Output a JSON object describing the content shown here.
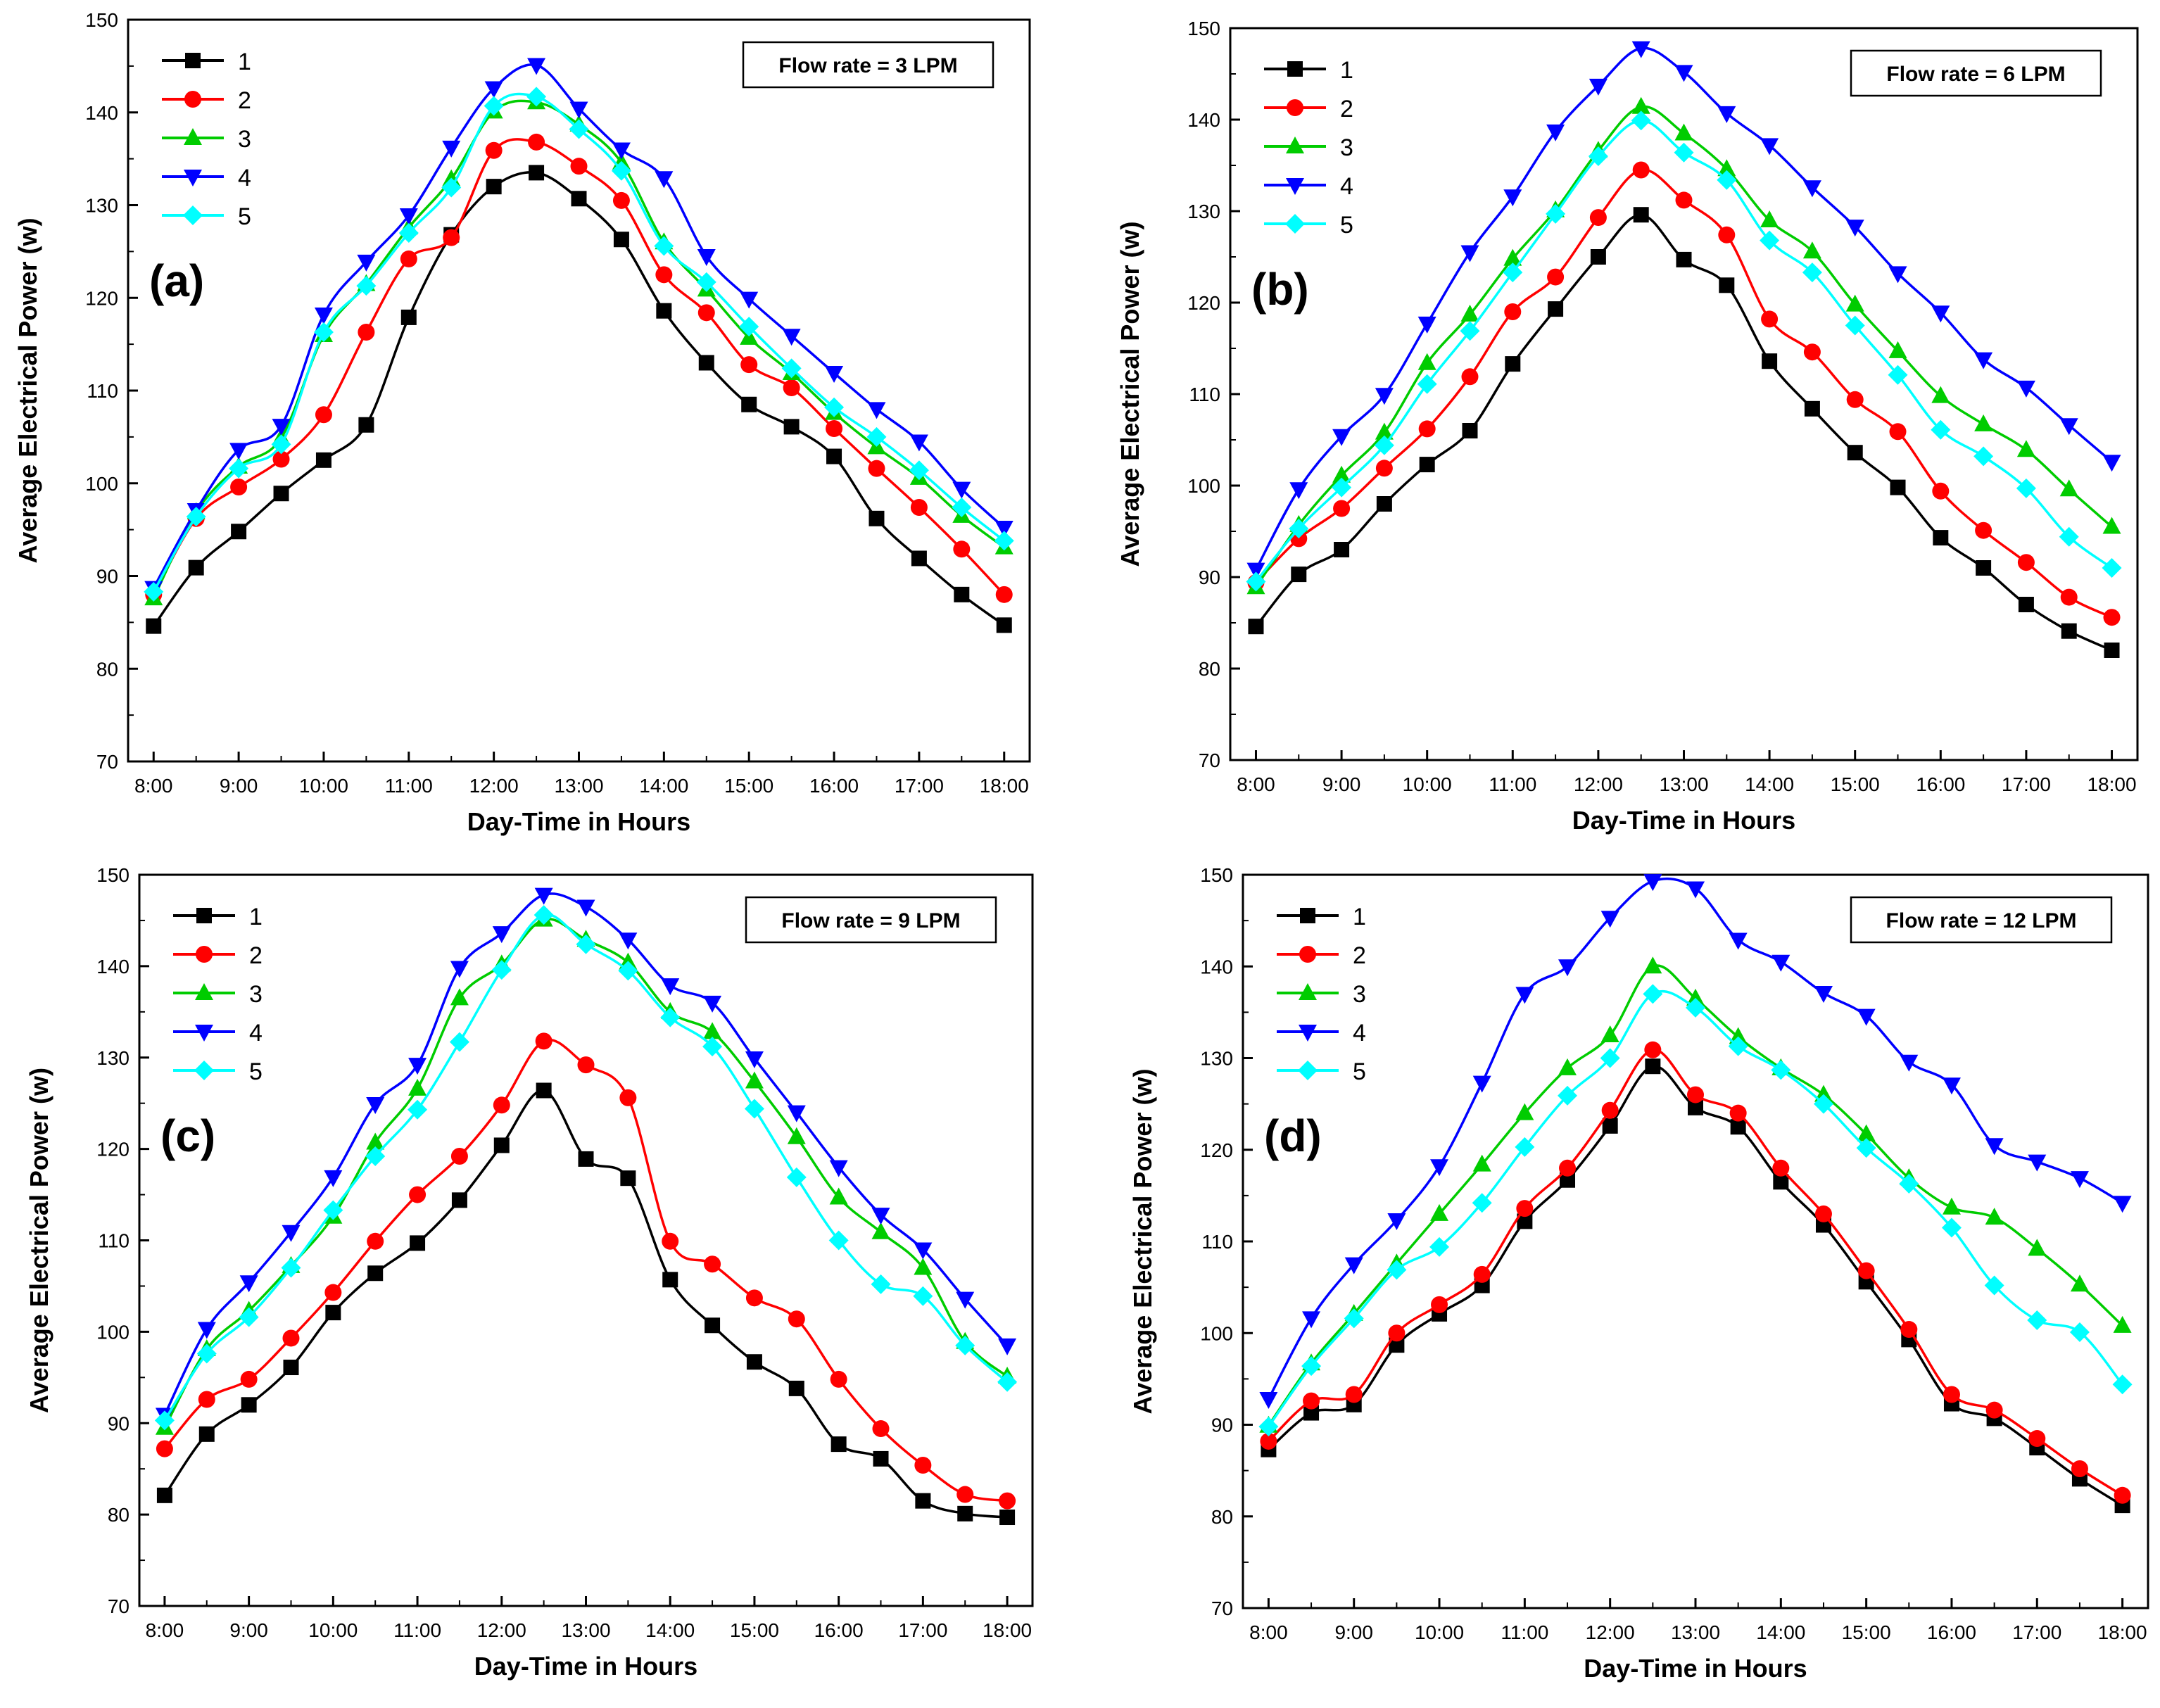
{
  "figure": {
    "common": {
      "ylabel": "Average Electrical Power (w)",
      "xlabel": "Day-Time in Hours",
      "ylim": [
        70,
        150
      ],
      "yticks": [
        "70",
        "80",
        "90",
        "100",
        "110",
        "120",
        "130",
        "140",
        "150"
      ],
      "xticks": [
        "8:00",
        "9:00",
        "10:00",
        "11:00",
        "12:00",
        "13:00",
        "14:00",
        "15:00",
        "16:00",
        "17:00",
        "18:00"
      ],
      "legend_entries": [
        "1",
        "2",
        "3",
        "4",
        "5"
      ],
      "series_colors": [
        "#000000",
        "#ff0000",
        "#00cc00",
        "#0000ff",
        "#00ffff"
      ],
      "series_markers": [
        "square",
        "circle",
        "triangle-up",
        "triangle-down",
        "diamond"
      ]
    }
  },
  "chart_data": [
    {
      "type": "line",
      "panel_label": "(a)",
      "title": "Flow rate = 3 LPM",
      "xlabel": "Day-Time in Hours",
      "ylabel": "Average Electrical Power (w)",
      "ylim": [
        70,
        150
      ],
      "x": [
        8.0,
        8.5,
        9.0,
        9.5,
        10.0,
        10.5,
        11.0,
        11.5,
        12.0,
        12.5,
        13.0,
        13.5,
        14.0,
        14.5,
        15.0,
        15.5,
        16.0,
        16.5,
        17.0,
        17.5,
        18.0
      ],
      "legend_position": "top-left",
      "series": [
        {
          "name": "1",
          "values": [
            84.6,
            90.9,
            94.8,
            98.9,
            102.5,
            106.3,
            117.9,
            126.8,
            132.0,
            133.5,
            130.7,
            126.3,
            118.6,
            113.0,
            108.5,
            106.1,
            102.9,
            96.2,
            91.9,
            88.0,
            84.7
          ]
        },
        {
          "name": "2",
          "values": [
            88.0,
            96.2,
            99.6,
            102.6,
            107.4,
            116.3,
            124.2,
            126.5,
            135.9,
            136.8,
            134.2,
            130.5,
            122.5,
            118.4,
            112.8,
            110.3,
            105.9,
            101.6,
            97.4,
            92.9,
            88.0
          ]
        },
        {
          "name": "3",
          "values": [
            87.6,
            96.9,
            101.8,
            104.9,
            116.0,
            121.5,
            127.6,
            132.8,
            140.1,
            141.1,
            138.7,
            134.6,
            126.0,
            120.9,
            115.7,
            111.9,
            107.6,
            103.9,
            100.6,
            96.5,
            93.1
          ]
        },
        {
          "name": "4",
          "values": [
            88.7,
            97.1,
            103.6,
            106.2,
            118.2,
            123.9,
            128.9,
            136.2,
            142.6,
            145.1,
            140.4,
            136.0,
            132.9,
            124.5,
            119.9,
            115.9,
            111.9,
            108.0,
            104.5,
            99.4,
            95.2
          ]
        },
        {
          "name": "5",
          "values": [
            88.3,
            96.4,
            101.6,
            104.2,
            116.3,
            121.3,
            127.0,
            131.9,
            140.7,
            141.7,
            138.2,
            133.7,
            125.6,
            121.7,
            116.9,
            112.4,
            108.2,
            105.0,
            101.4,
            97.4,
            93.8
          ]
        }
      ]
    },
    {
      "type": "line",
      "panel_label": "(b)",
      "title": "Flow rate = 6 LPM",
      "xlabel": "Day-Time in Hours",
      "ylabel": "Average Electrical Power (w)",
      "ylim": [
        70,
        150
      ],
      "x": [
        8.0,
        8.5,
        9.0,
        9.5,
        10.0,
        10.5,
        11.0,
        11.5,
        12.0,
        12.5,
        13.0,
        13.5,
        14.0,
        14.5,
        15.0,
        15.5,
        16.0,
        16.5,
        17.0,
        17.5,
        18.0
      ],
      "legend_position": "top-left",
      "series": [
        {
          "name": "1",
          "values": [
            84.6,
            90.3,
            93.0,
            98.0,
            102.3,
            106.0,
            113.3,
            119.3,
            125.0,
            129.6,
            124.7,
            121.9,
            113.6,
            108.4,
            103.6,
            99.8,
            94.3,
            91.0,
            87.0,
            84.1,
            82.0
          ]
        },
        {
          "name": "2",
          "values": [
            89.4,
            94.2,
            97.5,
            101.9,
            106.2,
            111.9,
            119.0,
            122.8,
            129.3,
            134.5,
            131.2,
            127.4,
            118.2,
            114.6,
            109.4,
            105.9,
            99.4,
            95.1,
            91.6,
            87.8,
            85.6
          ]
        },
        {
          "name": "3",
          "values": [
            88.9,
            95.7,
            101.1,
            105.8,
            113.4,
            118.7,
            124.8,
            130.1,
            136.6,
            141.4,
            138.5,
            134.6,
            129.0,
            125.6,
            119.8,
            114.7,
            109.8,
            106.7,
            103.9,
            99.6,
            95.5
          ]
        },
        {
          "name": "4",
          "values": [
            90.8,
            99.6,
            105.4,
            109.9,
            117.7,
            125.5,
            131.6,
            138.7,
            143.7,
            147.8,
            145.2,
            140.7,
            137.2,
            132.6,
            128.3,
            123.2,
            118.9,
            113.8,
            110.7,
            106.6,
            102.6
          ]
        },
        {
          "name": "5",
          "values": [
            89.5,
            95.3,
            99.8,
            104.4,
            111.1,
            116.9,
            123.3,
            129.7,
            136.0,
            139.9,
            136.4,
            133.4,
            126.8,
            123.3,
            117.5,
            112.1,
            106.1,
            103.2,
            99.7,
            94.4,
            91.0
          ]
        }
      ]
    },
    {
      "type": "line",
      "panel_label": "(c)",
      "title": "Flow rate = 9 LPM",
      "xlabel": "Day-Time in Hours",
      "ylabel": "Average Electrical Power (w)",
      "ylim": [
        70,
        150
      ],
      "x": [
        8.0,
        8.5,
        9.0,
        9.5,
        10.0,
        10.5,
        11.0,
        11.5,
        12.0,
        12.5,
        13.0,
        13.5,
        14.0,
        14.5,
        15.0,
        15.5,
        16.0,
        16.5,
        17.0,
        17.5,
        18.0
      ],
      "legend_position": "top-left",
      "series": [
        {
          "name": "1",
          "values": [
            82.1,
            88.8,
            92.0,
            96.1,
            102.1,
            106.4,
            109.7,
            114.4,
            120.4,
            126.4,
            118.9,
            116.8,
            105.7,
            100.7,
            96.7,
            93.8,
            87.7,
            86.1,
            81.5,
            80.1,
            79.7
          ]
        },
        {
          "name": "2",
          "values": [
            87.2,
            92.6,
            94.8,
            99.3,
            104.3,
            109.9,
            115.0,
            119.2,
            124.8,
            131.8,
            129.2,
            125.6,
            109.9,
            107.4,
            103.7,
            101.4,
            94.8,
            89.4,
            85.4,
            82.2,
            81.5
          ]
        },
        {
          "name": "3",
          "values": [
            89.5,
            98.1,
            102.3,
            107.2,
            112.6,
            120.7,
            126.6,
            136.5,
            140.2,
            145.1,
            142.9,
            140.4,
            135.0,
            132.8,
            127.4,
            121.3,
            114.7,
            110.9,
            107.0,
            98.9,
            95.1
          ]
        },
        {
          "name": "4",
          "values": [
            90.9,
            100.3,
            105.4,
            110.9,
            116.9,
            124.9,
            129.2,
            139.8,
            143.6,
            147.8,
            146.5,
            142.9,
            137.9,
            136.0,
            129.9,
            124.0,
            118.0,
            112.8,
            109.0,
            103.6,
            98.5
          ]
        },
        {
          "name": "5",
          "values": [
            90.3,
            97.6,
            101.6,
            107.0,
            113.3,
            119.2,
            124.3,
            131.7,
            139.6,
            145.6,
            142.4,
            139.5,
            134.4,
            131.2,
            124.4,
            116.9,
            110.0,
            105.2,
            103.9,
            98.5,
            94.5
          ]
        }
      ]
    },
    {
      "type": "line",
      "panel_label": "(d)",
      "title": "Flow rate = 12 LPM",
      "xlabel": "Day-Time in Hours",
      "ylabel": "Average Electrical Power (w)",
      "ylim": [
        70,
        150
      ],
      "x": [
        8.0,
        8.5,
        9.0,
        9.5,
        10.0,
        10.5,
        11.0,
        11.5,
        12.0,
        12.5,
        13.0,
        13.5,
        14.0,
        14.5,
        15.0,
        15.5,
        16.0,
        16.5,
        17.0,
        17.5,
        18.0
      ],
      "legend_position": "top-left",
      "series": [
        {
          "name": "1",
          "values": [
            87.3,
            91.3,
            92.2,
            98.7,
            102.1,
            105.2,
            112.2,
            116.7,
            122.6,
            129.1,
            124.6,
            122.5,
            116.5,
            111.8,
            105.6,
            99.3,
            92.3,
            90.7,
            87.5,
            84.1,
            81.2
          ]
        },
        {
          "name": "2",
          "values": [
            88.2,
            92.6,
            93.3,
            100.0,
            103.1,
            106.4,
            113.6,
            118.0,
            124.3,
            130.9,
            126.0,
            124.0,
            118.0,
            113.0,
            106.8,
            100.4,
            93.3,
            91.6,
            88.5,
            85.2,
            82.3
          ]
        },
        {
          "name": "3",
          "values": [
            89.9,
            96.7,
            102.1,
            107.6,
            113.0,
            118.4,
            124.0,
            128.9,
            132.5,
            140.0,
            136.5,
            132.3,
            128.9,
            126.0,
            121.7,
            116.9,
            113.7,
            112.6,
            109.2,
            105.3,
            100.8
          ]
        },
        {
          "name": "4",
          "values": [
            92.8,
            101.6,
            107.5,
            112.3,
            118.2,
            127.3,
            137.0,
            140.0,
            145.3,
            149.3,
            148.5,
            142.9,
            140.5,
            137.1,
            134.6,
            129.6,
            127.1,
            120.5,
            118.7,
            116.9,
            114.2
          ]
        },
        {
          "name": "5",
          "values": [
            89.8,
            96.4,
            101.6,
            106.9,
            109.4,
            114.2,
            120.3,
            125.9,
            130.0,
            137.0,
            135.5,
            131.3,
            128.7,
            125.0,
            120.2,
            116.3,
            111.5,
            105.2,
            101.4,
            100.1,
            94.4
          ]
        }
      ]
    }
  ]
}
